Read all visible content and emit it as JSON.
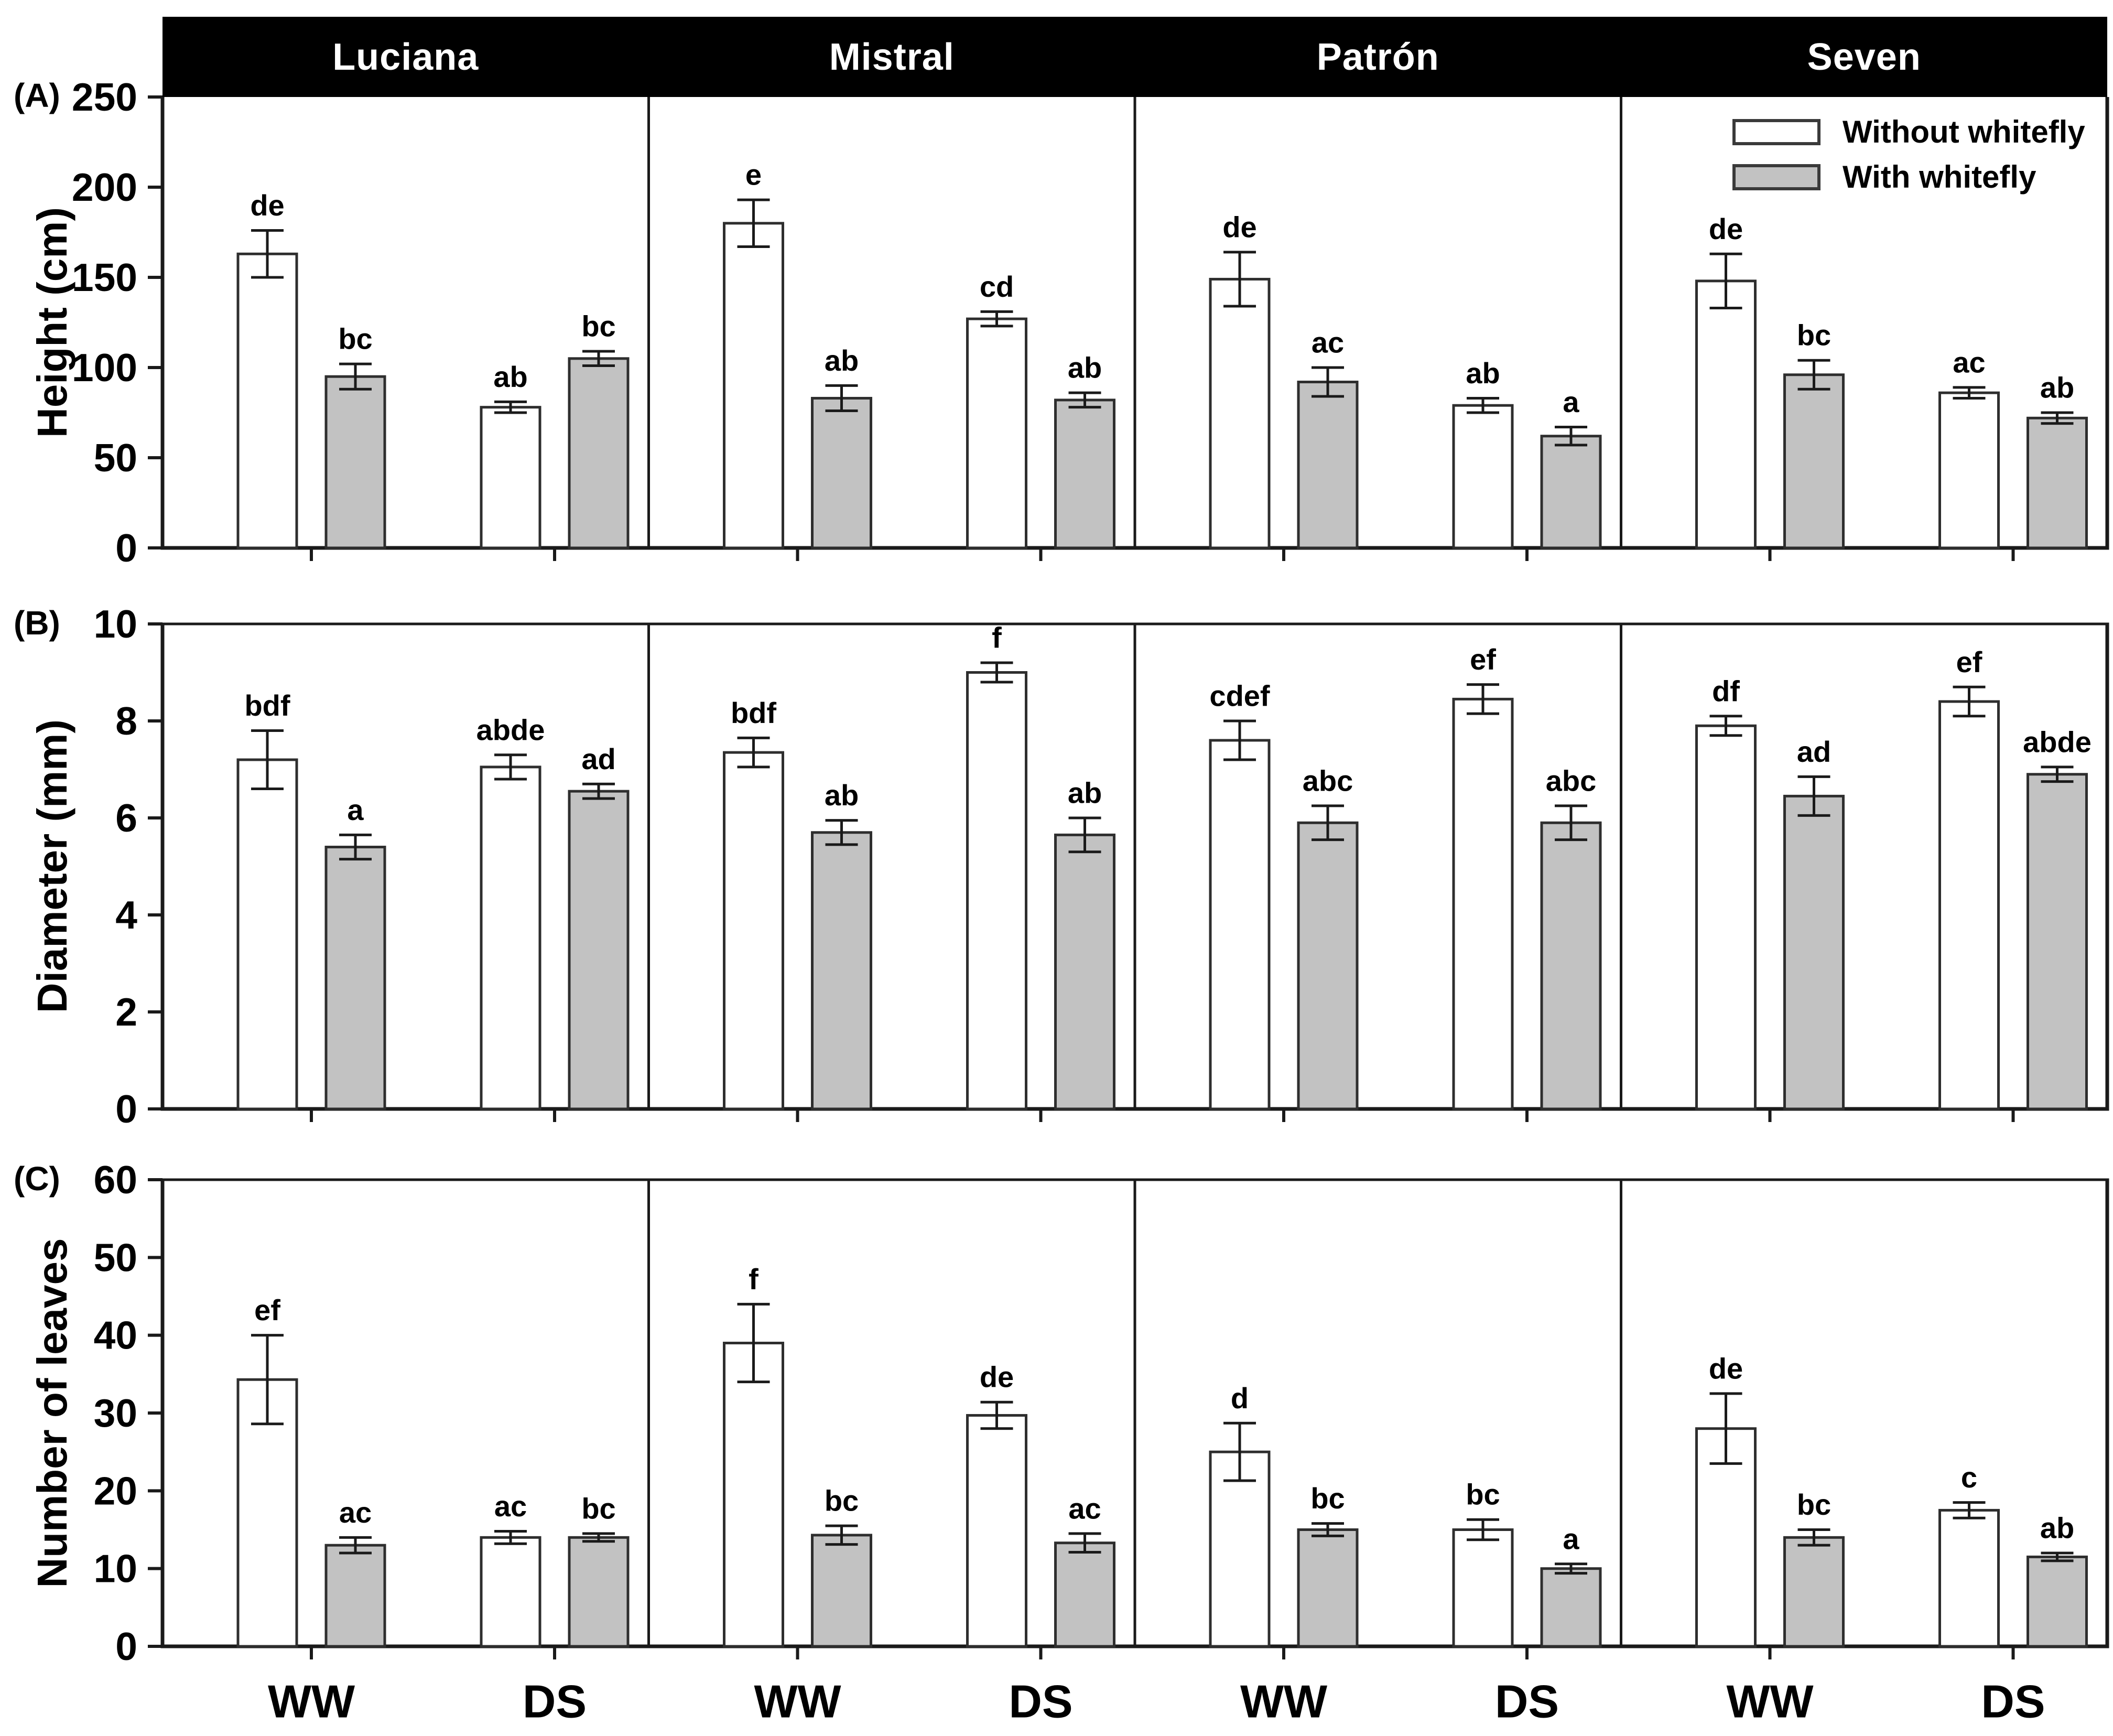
{
  "figure": {
    "panel_letters": [
      "(A)",
      "(B)",
      "(C)"
    ],
    "header_titles": [
      "Luciana",
      "Mistral",
      "Patrón",
      "Seven"
    ],
    "legend": {
      "items": [
        {
          "label": "Without whitefly",
          "fill": "#ffffff"
        },
        {
          "label": "With whitefly",
          "fill": "#c2c2c2"
        }
      ]
    },
    "colors": {
      "header_bg": "#000000",
      "header_text": "#ffffff",
      "bar_without_fill": "#ffffff",
      "bar_with_fill": "#c2c2c2",
      "bar_border": "#2e2e2e",
      "axis": "#1a1a1a"
    }
  },
  "chart_data": [
    {
      "type": "bar",
      "panel": "(A)",
      "ylabel": "Height (cm)",
      "ylim": [
        0,
        250
      ],
      "yticks": [
        250,
        200,
        150,
        100,
        50,
        0
      ],
      "group_labels": [
        "WW",
        "DS"
      ],
      "series_names": [
        "Without whitefly",
        "With whitefly"
      ],
      "data": [
        {
          "cultivar": "Luciana",
          "groups": [
            {
              "label": "WW",
              "bars": [
                {
                  "mean": 163,
                  "err": 13,
                  "letter": "de"
                },
                {
                  "mean": 95,
                  "err": 7,
                  "letter": "bc"
                }
              ]
            },
            {
              "label": "DS",
              "bars": [
                {
                  "mean": 78,
                  "err": 3,
                  "letter": "ab"
                },
                {
                  "mean": 105,
                  "err": 4,
                  "letter": "bc"
                }
              ]
            }
          ]
        },
        {
          "cultivar": "Mistral",
          "groups": [
            {
              "label": "WW",
              "bars": [
                {
                  "mean": 180,
                  "err": 13,
                  "letter": "e"
                },
                {
                  "mean": 83,
                  "err": 7,
                  "letter": "ab"
                }
              ]
            },
            {
              "label": "DS",
              "bars": [
                {
                  "mean": 127,
                  "err": 4,
                  "letter": "cd"
                },
                {
                  "mean": 82,
                  "err": 4,
                  "letter": "ab"
                }
              ]
            }
          ]
        },
        {
          "cultivar": "Patrón",
          "groups": [
            {
              "label": "WW",
              "bars": [
                {
                  "mean": 149,
                  "err": 15,
                  "letter": "de"
                },
                {
                  "mean": 92,
                  "err": 8,
                  "letter": "ac"
                }
              ]
            },
            {
              "label": "DS",
              "bars": [
                {
                  "mean": 79,
                  "err": 4,
                  "letter": "ab"
                },
                {
                  "mean": 62,
                  "err": 5,
                  "letter": "a"
                }
              ]
            }
          ]
        },
        {
          "cultivar": "Seven",
          "groups": [
            {
              "label": "WW",
              "bars": [
                {
                  "mean": 148,
                  "err": 15,
                  "letter": "de"
                },
                {
                  "mean": 96,
                  "err": 8,
                  "letter": "bc"
                }
              ]
            },
            {
              "label": "DS",
              "bars": [
                {
                  "mean": 86,
                  "err": 3,
                  "letter": "ac"
                },
                {
                  "mean": 72,
                  "err": 3,
                  "letter": "ab"
                }
              ]
            }
          ]
        }
      ]
    },
    {
      "type": "bar",
      "panel": "(B)",
      "ylabel": "Diameter (mm)",
      "ylim": [
        0,
        10
      ],
      "yticks": [
        10,
        8,
        6,
        4,
        2,
        0
      ],
      "group_labels": [
        "WW",
        "DS"
      ],
      "series_names": [
        "Without whitefly",
        "With whitefly"
      ],
      "data": [
        {
          "cultivar": "Luciana",
          "groups": [
            {
              "label": "WW",
              "bars": [
                {
                  "mean": 7.2,
                  "err": 0.6,
                  "letter": "bdf"
                },
                {
                  "mean": 5.4,
                  "err": 0.25,
                  "letter": "a"
                }
              ]
            },
            {
              "label": "DS",
              "bars": [
                {
                  "mean": 7.05,
                  "err": 0.25,
                  "letter": "abde"
                },
                {
                  "mean": 6.55,
                  "err": 0.15,
                  "letter": "ad"
                }
              ]
            }
          ]
        },
        {
          "cultivar": "Mistral",
          "groups": [
            {
              "label": "WW",
              "bars": [
                {
                  "mean": 7.35,
                  "err": 0.3,
                  "letter": "bdf"
                },
                {
                  "mean": 5.7,
                  "err": 0.25,
                  "letter": "ab"
                }
              ]
            },
            {
              "label": "DS",
              "bars": [
                {
                  "mean": 9.0,
                  "err": 0.2,
                  "letter": "f"
                },
                {
                  "mean": 5.65,
                  "err": 0.35,
                  "letter": "ab"
                }
              ]
            }
          ]
        },
        {
          "cultivar": "Patrón",
          "groups": [
            {
              "label": "WW",
              "bars": [
                {
                  "mean": 7.6,
                  "err": 0.4,
                  "letter": "cdef"
                },
                {
                  "mean": 5.9,
                  "err": 0.35,
                  "letter": "abc"
                }
              ]
            },
            {
              "label": "DS",
              "bars": [
                {
                  "mean": 8.45,
                  "err": 0.3,
                  "letter": "ef"
                },
                {
                  "mean": 5.9,
                  "err": 0.35,
                  "letter": "abc"
                }
              ]
            }
          ]
        },
        {
          "cultivar": "Seven",
          "groups": [
            {
              "label": "WW",
              "bars": [
                {
                  "mean": 7.9,
                  "err": 0.2,
                  "letter": "df"
                },
                {
                  "mean": 6.45,
                  "err": 0.4,
                  "letter": "ad"
                }
              ]
            },
            {
              "label": "DS",
              "bars": [
                {
                  "mean": 8.4,
                  "err": 0.3,
                  "letter": "ef"
                },
                {
                  "mean": 6.9,
                  "err": 0.15,
                  "letter": "abde"
                }
              ]
            }
          ]
        }
      ]
    },
    {
      "type": "bar",
      "panel": "(C)",
      "ylabel": "Number of leaves",
      "ylim": [
        0,
        60
      ],
      "yticks": [
        60,
        50,
        40,
        30,
        20,
        10,
        0
      ],
      "group_labels": [
        "WW",
        "DS"
      ],
      "series_names": [
        "Without whitefly",
        "With whitefly"
      ],
      "data": [
        {
          "cultivar": "Luciana",
          "groups": [
            {
              "label": "WW",
              "bars": [
                {
                  "mean": 34.3,
                  "err": 5.7,
                  "letter": "ef"
                },
                {
                  "mean": 13,
                  "err": 1,
                  "letter": "ac"
                }
              ]
            },
            {
              "label": "DS",
              "bars": [
                {
                  "mean": 14,
                  "err": 0.8,
                  "letter": "ac"
                },
                {
                  "mean": 14,
                  "err": 0.5,
                  "letter": "bc"
                }
              ]
            }
          ]
        },
        {
          "cultivar": "Mistral",
          "groups": [
            {
              "label": "WW",
              "bars": [
                {
                  "mean": 39,
                  "err": 5,
                  "letter": "f"
                },
                {
                  "mean": 14.3,
                  "err": 1.2,
                  "letter": "bc"
                }
              ]
            },
            {
              "label": "DS",
              "bars": [
                {
                  "mean": 29.7,
                  "err": 1.7,
                  "letter": "de"
                },
                {
                  "mean": 13.3,
                  "err": 1.2,
                  "letter": "ac"
                }
              ]
            }
          ]
        },
        {
          "cultivar": "Patrón",
          "groups": [
            {
              "label": "WW",
              "bars": [
                {
                  "mean": 25,
                  "err": 3.7,
                  "letter": "d"
                },
                {
                  "mean": 15,
                  "err": 0.8,
                  "letter": "bc"
                }
              ]
            },
            {
              "label": "DS",
              "bars": [
                {
                  "mean": 15,
                  "err": 1.3,
                  "letter": "bc"
                },
                {
                  "mean": 10,
                  "err": 0.6,
                  "letter": "a"
                }
              ]
            }
          ]
        },
        {
          "cultivar": "Seven",
          "groups": [
            {
              "label": "WW",
              "bars": [
                {
                  "mean": 28,
                  "err": 4.5,
                  "letter": "de"
                },
                {
                  "mean": 14,
                  "err": 1,
                  "letter": "bc"
                }
              ]
            },
            {
              "label": "DS",
              "bars": [
                {
                  "mean": 17.5,
                  "err": 1,
                  "letter": "c"
                },
                {
                  "mean": 11.5,
                  "err": 0.5,
                  "letter": "ab"
                }
              ]
            }
          ]
        }
      ]
    }
  ]
}
